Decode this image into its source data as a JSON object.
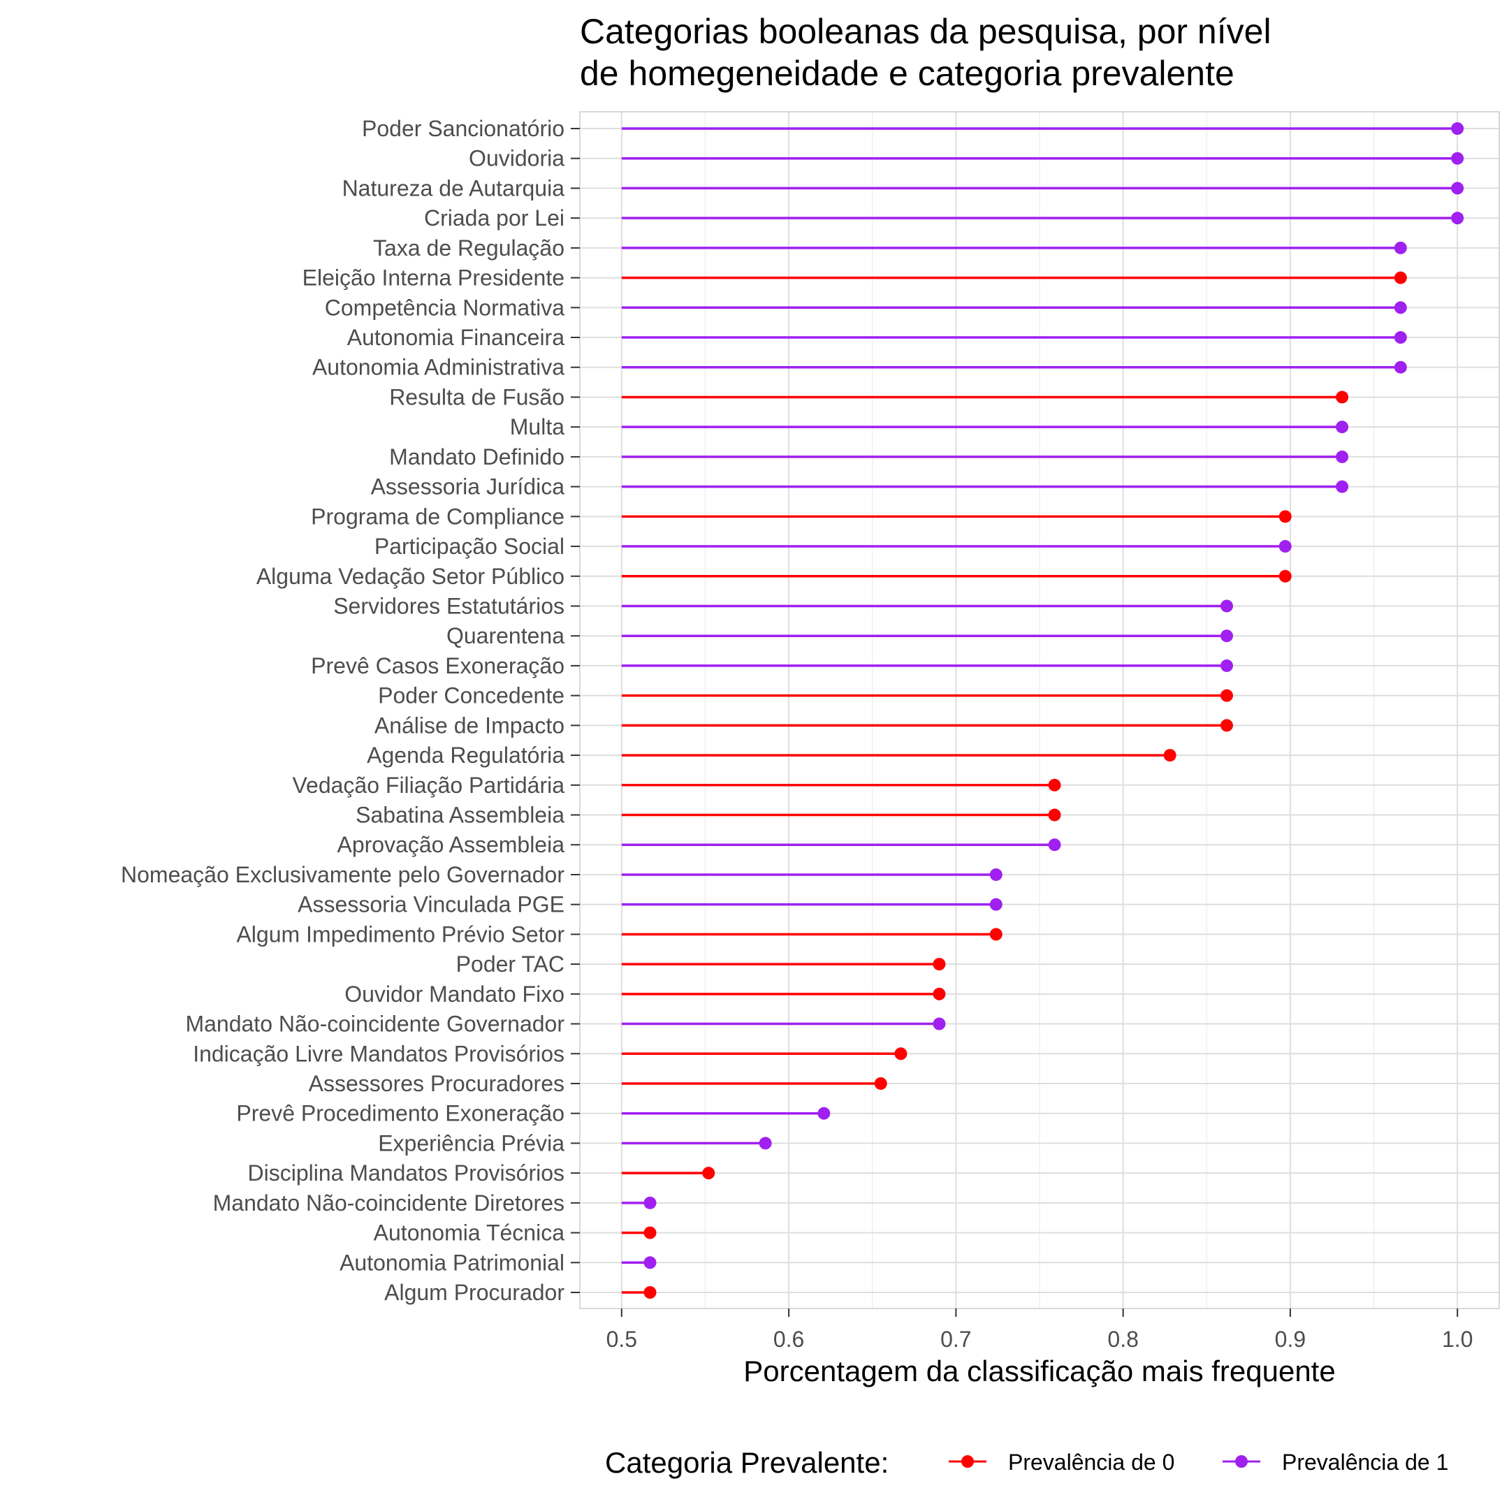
{
  "chart_data": {
    "type": "lollipop",
    "title_line1": "Categorias booleanas da pesquisa, por nível",
    "title_line2": "de homegeneidade e categoria prevalente",
    "xlabel": "Porcentagem da classificação mais frequente",
    "xlim": [
      0.475,
      1.025
    ],
    "xticks": [
      "0.5",
      "0.6",
      "0.7",
      "0.8",
      "0.9",
      "1.0"
    ],
    "xtick_values": [
      0.5,
      0.6,
      0.7,
      0.8,
      0.9,
      1.0
    ],
    "baseline": 0.5,
    "grid": true,
    "legend": {
      "title": "Categoria Prevalente:",
      "placement": "bottom",
      "entries": [
        {
          "label": "Prevalência de 0",
          "color": "#ff0000"
        },
        {
          "label": "Prevalência de 1",
          "color": "#a020f0"
        }
      ]
    },
    "colors": {
      "0": "#ff0000",
      "1": "#a020f0"
    },
    "rows": [
      {
        "label": "Poder Sancionatório",
        "value": 1.0,
        "cat": 1
      },
      {
        "label": "Ouvidoria",
        "value": 1.0,
        "cat": 1
      },
      {
        "label": "Natureza de Autarquia",
        "value": 1.0,
        "cat": 1
      },
      {
        "label": "Criada por Lei",
        "value": 1.0,
        "cat": 1
      },
      {
        "label": "Taxa de Regulação",
        "value": 0.966,
        "cat": 1
      },
      {
        "label": "Eleição Interna Presidente",
        "value": 0.966,
        "cat": 0
      },
      {
        "label": "Competência Normativa",
        "value": 0.966,
        "cat": 1
      },
      {
        "label": "Autonomia Financeira",
        "value": 0.966,
        "cat": 1
      },
      {
        "label": "Autonomia Administrativa",
        "value": 0.966,
        "cat": 1
      },
      {
        "label": "Resulta de Fusão",
        "value": 0.931,
        "cat": 0
      },
      {
        "label": "Multa",
        "value": 0.931,
        "cat": 1
      },
      {
        "label": "Mandato Definido",
        "value": 0.931,
        "cat": 1
      },
      {
        "label": "Assessoria Jurídica",
        "value": 0.931,
        "cat": 1
      },
      {
        "label": "Programa de Compliance",
        "value": 0.897,
        "cat": 0
      },
      {
        "label": "Participação Social",
        "value": 0.897,
        "cat": 1
      },
      {
        "label": "Alguma Vedação Setor Público",
        "value": 0.897,
        "cat": 0
      },
      {
        "label": "Servidores Estatutários",
        "value": 0.862,
        "cat": 1
      },
      {
        "label": "Quarentena",
        "value": 0.862,
        "cat": 1
      },
      {
        "label": "Prevê Casos Exoneração",
        "value": 0.862,
        "cat": 1
      },
      {
        "label": "Poder Concedente",
        "value": 0.862,
        "cat": 0
      },
      {
        "label": "Análise de Impacto",
        "value": 0.862,
        "cat": 0
      },
      {
        "label": "Agenda Regulatória",
        "value": 0.828,
        "cat": 0
      },
      {
        "label": "Vedação Filiação Partidária",
        "value": 0.759,
        "cat": 0
      },
      {
        "label": "Sabatina Assembleia",
        "value": 0.759,
        "cat": 0
      },
      {
        "label": "Aprovação Assembleia",
        "value": 0.759,
        "cat": 1
      },
      {
        "label": "Nomeação Exclusivamente pelo Governador",
        "value": 0.724,
        "cat": 1
      },
      {
        "label": "Assessoria Vinculada PGE",
        "value": 0.724,
        "cat": 1
      },
      {
        "label": "Algum Impedimento Prévio Setor",
        "value": 0.724,
        "cat": 0
      },
      {
        "label": "Poder TAC",
        "value": 0.69,
        "cat": 0
      },
      {
        "label": "Ouvidor Mandato Fixo",
        "value": 0.69,
        "cat": 0
      },
      {
        "label": "Mandato Não-coincidente Governador",
        "value": 0.69,
        "cat": 1
      },
      {
        "label": "Indicação Livre Mandatos Provisórios",
        "value": 0.667,
        "cat": 0
      },
      {
        "label": "Assessores Procuradores",
        "value": 0.655,
        "cat": 0
      },
      {
        "label": "Prevê Procedimento Exoneração",
        "value": 0.621,
        "cat": 1
      },
      {
        "label": "Experiência Prévia",
        "value": 0.586,
        "cat": 1
      },
      {
        "label": "Disciplina Mandatos Provisórios",
        "value": 0.552,
        "cat": 0
      },
      {
        "label": "Mandato Não-coincidente Diretores",
        "value": 0.517,
        "cat": 1
      },
      {
        "label": "Autonomia Técnica",
        "value": 0.517,
        "cat": 0
      },
      {
        "label": "Autonomia Patrimonial",
        "value": 0.517,
        "cat": 1
      },
      {
        "label": "Algum Procurador",
        "value": 0.517,
        "cat": 0
      }
    ]
  }
}
